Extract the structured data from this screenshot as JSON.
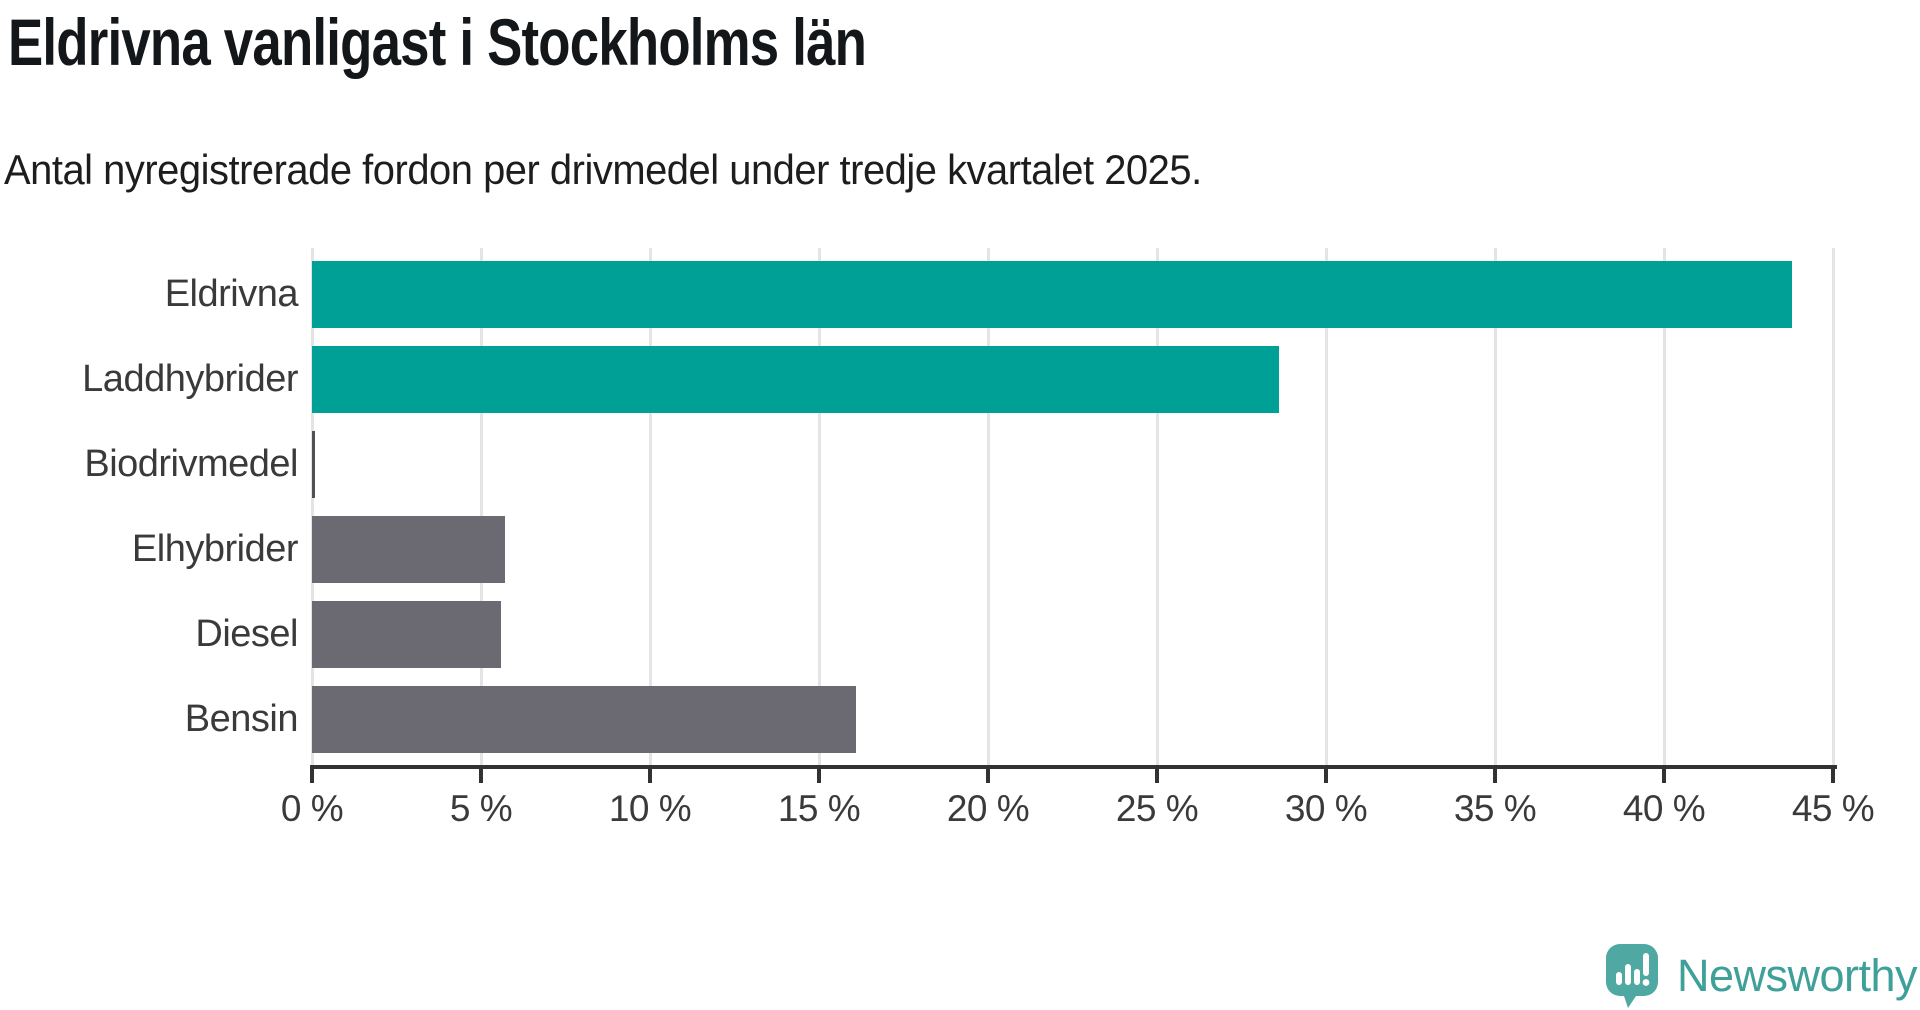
{
  "header": {
    "title": "Eldrivna vanligast i Stockholms län",
    "subtitle": "Antal nyregistrerade fordon per drivmedel under tredje kvartalet 2025."
  },
  "chart_data": {
    "type": "bar",
    "orientation": "horizontal",
    "title": "Eldrivna vanligast i Stockholms län",
    "subtitle": "Antal nyregistrerade fordon per drivmedel under tredje kvartalet 2025.",
    "categories": [
      "Eldrivna",
      "Laddhybrider",
      "Biodrivmedel",
      "Elhybrider",
      "Diesel",
      "Bensin"
    ],
    "values": [
      43.8,
      28.6,
      0.05,
      5.7,
      5.6,
      16.1
    ],
    "unit": "%",
    "xlim": [
      0,
      45
    ],
    "xticks": [
      0,
      5,
      10,
      15,
      20,
      25,
      30,
      35,
      40,
      45
    ],
    "xtick_labels": [
      "0 %",
      "5 %",
      "10 %",
      "15 %",
      "20 %",
      "25 %",
      "30 %",
      "35 %",
      "40 %",
      "45 %"
    ],
    "grid": "vertical-gridlines-on",
    "legend": "none",
    "bar_colors": [
      "#00a096",
      "#00a096",
      "#4f4f55",
      "#6b6a72",
      "#6b6a72",
      "#6b6a72"
    ],
    "accent_color": "#00a096",
    "neutral_color": "#6b6a72",
    "gridline_color": "#e4e4e4",
    "axis_color": "#323232",
    "label_color": "#3a3a3a"
  },
  "branding": {
    "logo_text": "Newsworthy",
    "logo_text_color": "#3fa09a",
    "logo_icon": "newsworthy-speech-bubble-bar-chart-icon",
    "logo_icon_color": "#4fa8a2"
  }
}
